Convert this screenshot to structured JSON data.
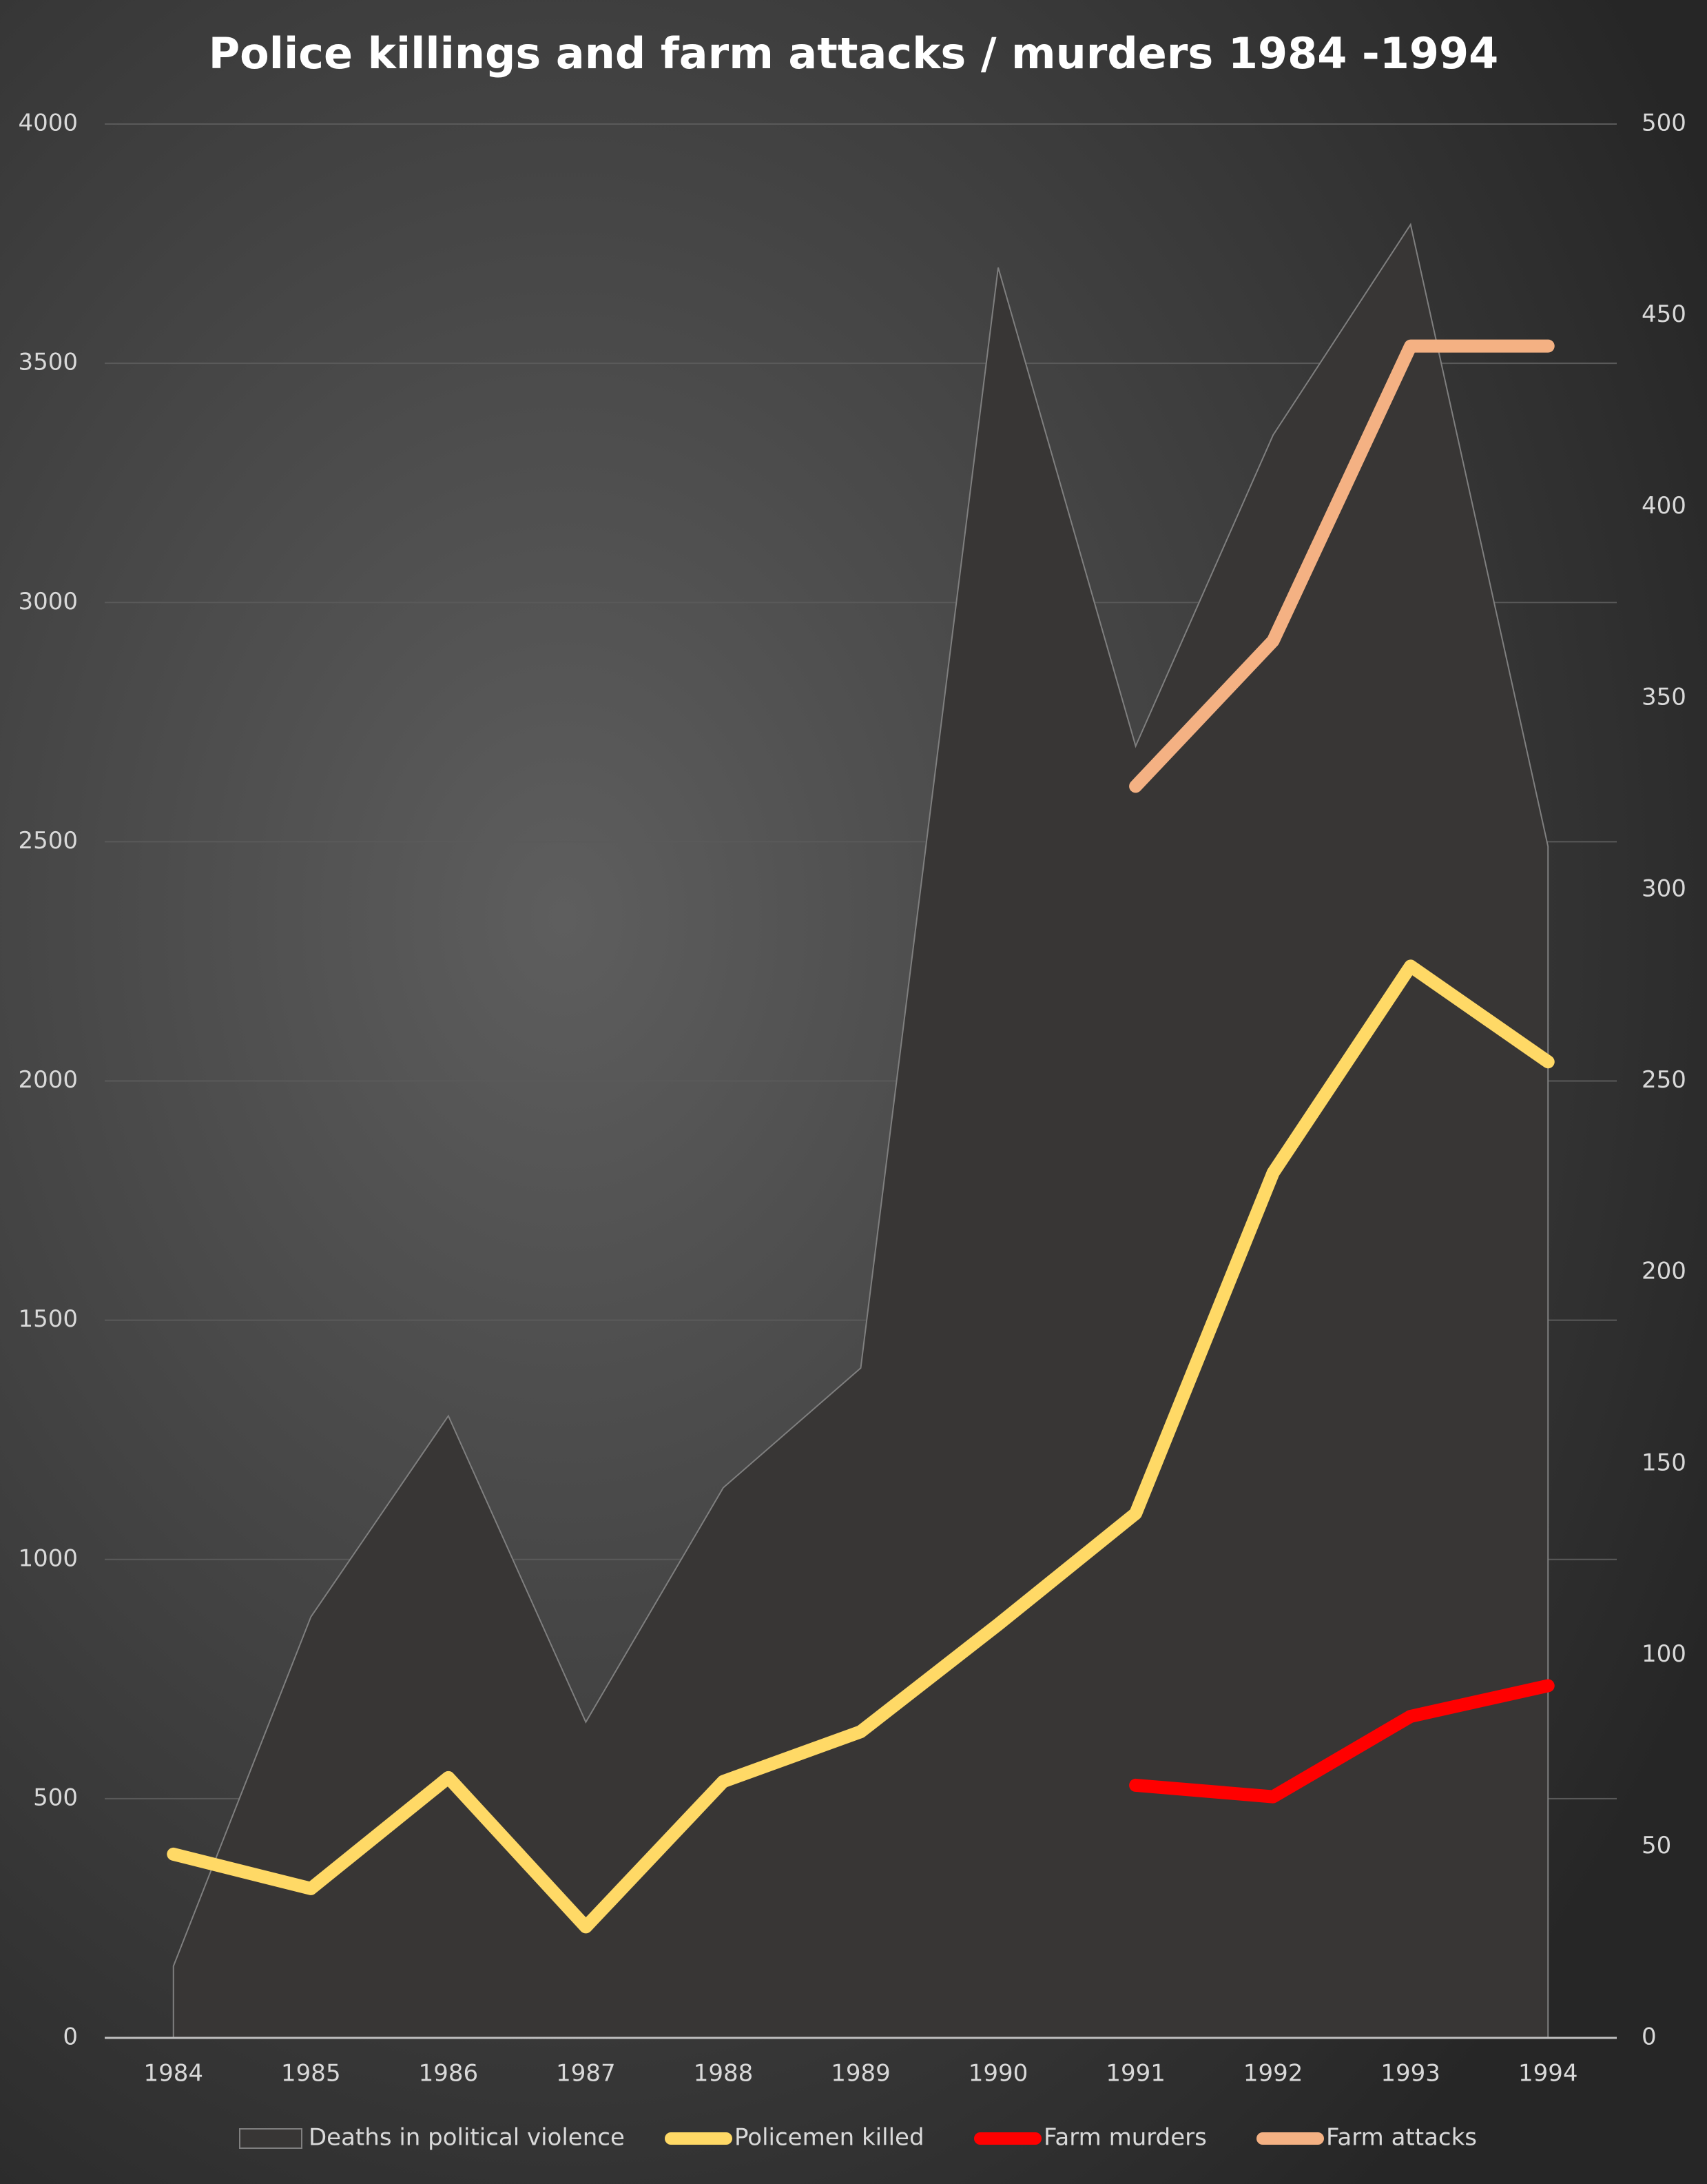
{
  "chart_data": {
    "type": "line",
    "title": "Police killings and farm attacks / murders 1984 -1994",
    "categories": [
      "1984",
      "1985",
      "1986",
      "1987",
      "1988",
      "1989",
      "1990",
      "1991",
      "1992",
      "1993",
      "1994"
    ],
    "series": [
      {
        "name": "Deaths in political violence",
        "type": "area",
        "color": "#383635",
        "values": [
          150,
          880,
          1300,
          660,
          1150,
          1400,
          3700,
          2700,
          3350,
          3790,
          2490
        ]
      },
      {
        "name": "Policemen killed",
        "color": "#ffd966",
        "axis": "y2",
        "values": [
          48,
          39,
          68,
          29,
          67,
          80,
          108,
          137,
          226,
          280,
          255
        ]
      },
      {
        "name": "Farm murders",
        "color": "#ff0000",
        "axis": "y2",
        "values": [
          null,
          null,
          null,
          null,
          null,
          null,
          null,
          66,
          63,
          84,
          92
        ]
      },
      {
        "name": "Farm attacks",
        "color": "#f4b183",
        "axis": "y2",
        "values": [
          null,
          null,
          null,
          null,
          null,
          null,
          null,
          327,
          365,
          442,
          442
        ]
      }
    ],
    "ylim": [
      0,
      4000
    ],
    "yticks": [
      0,
      500,
      1000,
      1500,
      2000,
      2500,
      3000,
      3500,
      4000
    ],
    "y2lim": [
      0,
      500
    ],
    "y2ticks": [
      0,
      50,
      100,
      150,
      200,
      250,
      300,
      350,
      400,
      450,
      500
    ],
    "grid": true
  }
}
